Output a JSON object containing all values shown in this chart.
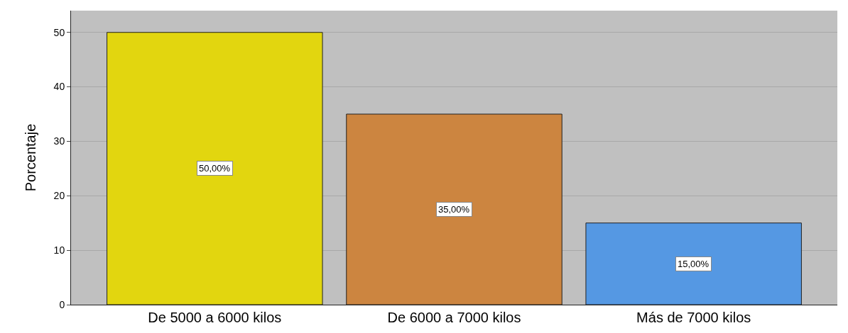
{
  "chart_data": {
    "type": "bar",
    "ylabel": "Porcentaje",
    "categories": [
      "De 5000 a 6000 kilos",
      "De 6000 a 7000 kilos",
      "Más de 7000 kilos"
    ],
    "values": [
      50,
      35,
      15
    ],
    "colors": [
      "#e2d60f",
      "#cc8540",
      "#5598e3"
    ],
    "value_labels": [
      "50,00%",
      "35,00%",
      "15,00%"
    ],
    "ylim": [
      0,
      54
    ],
    "yticks": [
      0,
      10,
      20,
      30,
      40,
      50
    ],
    "grid": "y"
  }
}
